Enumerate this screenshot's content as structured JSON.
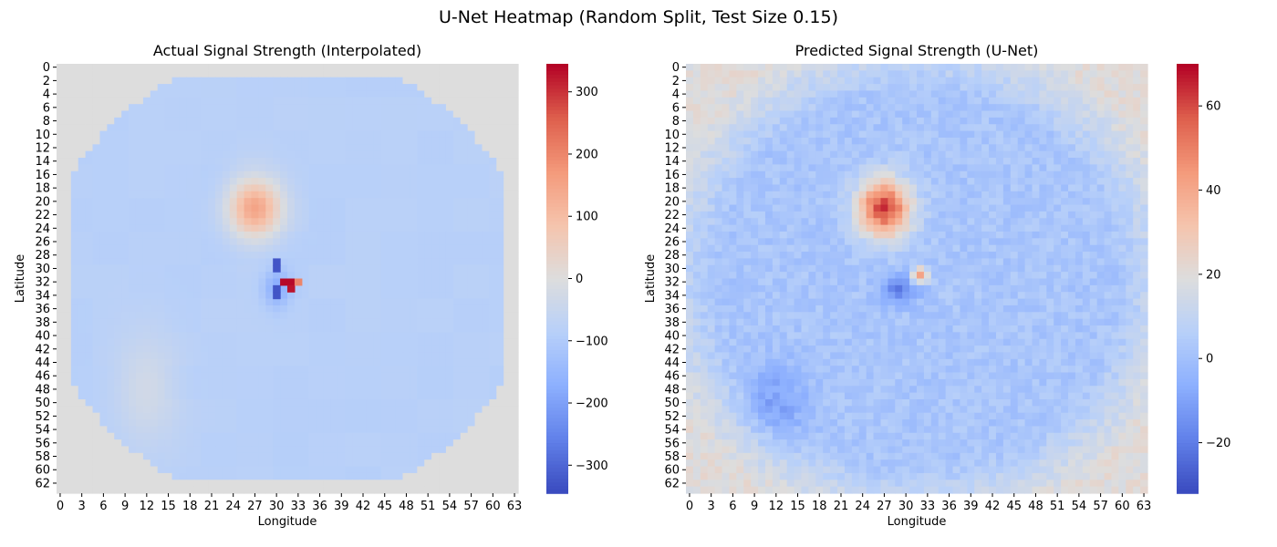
{
  "figure": {
    "title": "U-Net Heatmap (Random Split, Test Size 0.15)"
  },
  "chart_data": [
    {
      "type": "heatmap",
      "title": "Actual Signal Strength (Interpolated)",
      "xlabel": "Longitude",
      "ylabel": "Latitude",
      "grid_size": [
        64,
        64
      ],
      "x_ticks": [
        "0",
        "3",
        "6",
        "9",
        "12",
        "15",
        "18",
        "21",
        "24",
        "27",
        "30",
        "33",
        "36",
        "39",
        "42",
        "45",
        "48",
        "51",
        "54",
        "57",
        "60",
        "63"
      ],
      "y_ticks": [
        "0",
        "2",
        "4",
        "6",
        "8",
        "10",
        "12",
        "14",
        "16",
        "18",
        "20",
        "22",
        "24",
        "26",
        "28",
        "30",
        "32",
        "34",
        "36",
        "38",
        "40",
        "42",
        "44",
        "46",
        "48",
        "50",
        "52",
        "54",
        "56",
        "58",
        "60",
        "62"
      ],
      "colormap": "coolwarm",
      "vmin": -345,
      "vmax": 345,
      "colorbar_ticks": [
        "300",
        "200",
        "100",
        "0",
        "−100",
        "−200",
        "−300"
      ],
      "colorbar_values": [
        300,
        200,
        100,
        0,
        -100,
        -200,
        -300
      ],
      "background_value": 0,
      "outside_region": "circular-polygon",
      "base_value": -85,
      "features": [
        {
          "kind": "hotspot",
          "center": [
            27,
            21
          ],
          "peak": 150,
          "spread": [
            2.6,
            3.2
          ]
        },
        {
          "kind": "dipole",
          "center": [
            31,
            32
          ],
          "values": [
            [
              -330,
              -330
            ],
            [
              340,
              330
            ]
          ]
        },
        {
          "kind": "dip",
          "center": [
            30,
            33
          ],
          "peak": -180,
          "spread": [
            1.3,
            2
          ]
        },
        {
          "kind": "dip",
          "center": [
            12,
            48
          ],
          "peak": -30,
          "spread": [
            3,
            6
          ]
        }
      ]
    },
    {
      "type": "heatmap",
      "title": "Predicted Signal Strength (U-Net)",
      "xlabel": "Longitude",
      "ylabel": "Latitude",
      "grid_size": [
        64,
        64
      ],
      "x_ticks": [
        "0",
        "3",
        "6",
        "9",
        "12",
        "15",
        "18",
        "21",
        "24",
        "27",
        "30",
        "33",
        "36",
        "39",
        "42",
        "45",
        "48",
        "51",
        "54",
        "57",
        "60",
        "63"
      ],
      "y_ticks": [
        "0",
        "2",
        "4",
        "6",
        "8",
        "10",
        "12",
        "14",
        "16",
        "18",
        "20",
        "22",
        "24",
        "26",
        "28",
        "30",
        "32",
        "34",
        "36",
        "38",
        "40",
        "42",
        "44",
        "46",
        "48",
        "50",
        "52",
        "54",
        "56",
        "58",
        "60",
        "62"
      ],
      "colormap": "coolwarm",
      "vmin": -32,
      "vmax": 70,
      "colorbar_ticks": [
        "60",
        "40",
        "20",
        "0",
        "−20"
      ],
      "colorbar_values": [
        60,
        40,
        20,
        0,
        -20
      ],
      "base_value": 2,
      "corner_value": 20,
      "features": [
        {
          "kind": "hotspot",
          "center": [
            27,
            21
          ],
          "peak": 62,
          "spread": [
            2.5,
            3
          ]
        },
        {
          "kind": "hotspot",
          "center": [
            32,
            31
          ],
          "peak": 45,
          "spread": [
            0.8,
            0.8
          ]
        },
        {
          "kind": "dip",
          "center": [
            29,
            33
          ],
          "peak": -20,
          "spread": [
            1.8,
            1.5
          ]
        },
        {
          "kind": "dip",
          "center": [
            12,
            50
          ],
          "peak": -10,
          "spread": [
            3,
            4
          ]
        }
      ]
    }
  ]
}
